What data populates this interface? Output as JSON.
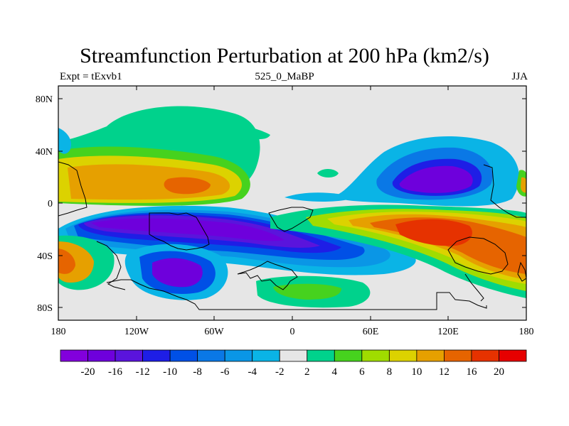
{
  "title": "Streamfunction Perturbation at 200 hPa (km2/s)",
  "subtitle_left": "Expt = tExvb1",
  "subtitle_center": "525_0_MaBP",
  "subtitle_right": "JJA",
  "axes": {
    "lat_ticks": [
      "80N",
      "40N",
      "0",
      "40S",
      "80S"
    ],
    "lon_ticks": [
      "180",
      "120W",
      "60W",
      "0",
      "60E",
      "120E",
      "180"
    ]
  },
  "colorbar": {
    "colors": [
      "#8200dc",
      "#6e00dc",
      "#5a14dc",
      "#1e1ee6",
      "#0050e6",
      "#0a78e6",
      "#0a96e6",
      "#0ab4e6",
      "#e6e6e6",
      "#00d28c",
      "#46d21e",
      "#a0dc00",
      "#dcd200",
      "#e6a000",
      "#e66400",
      "#e63200",
      "#e60000"
    ],
    "labels": [
      "-20",
      "-16",
      "-12",
      "-10",
      "-8",
      "-6",
      "-4",
      "-2",
      "2",
      "4",
      "6",
      "8",
      "10",
      "12",
      "16",
      "20"
    ]
  }
}
